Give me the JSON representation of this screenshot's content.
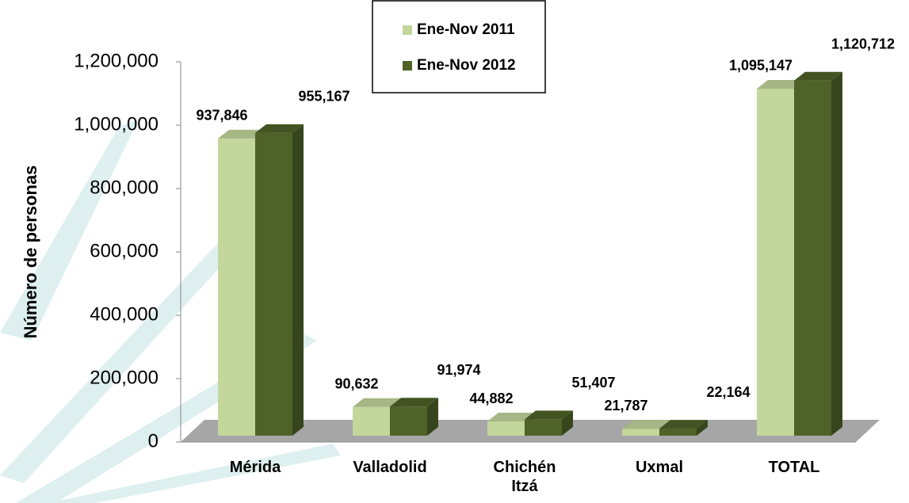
{
  "chart_data": {
    "type": "bar3d",
    "y_axis_label": "Número de personas",
    "categories": [
      "Mérida",
      "Valladolid",
      "Chichén Itzá",
      "Uxmal",
      "TOTAL"
    ],
    "series": [
      {
        "name": "Ene-Nov 2011",
        "color": "#c3d69b",
        "values": [
          937846,
          90632,
          44882,
          21787,
          1095147
        ],
        "value_labels": [
          "937,846",
          "90,632",
          "44,882",
          "21,787",
          "1,095,147"
        ]
      },
      {
        "name": "Ene-Nov 2012",
        "color": "#4f6228",
        "values": [
          955167,
          91974,
          51407,
          22164,
          1120712
        ],
        "value_labels": [
          "955,167",
          "91,974",
          "51,407",
          "22,164",
          "1,120,712"
        ]
      }
    ],
    "ylim": [
      0,
      1200000
    ],
    "yticks": [
      0,
      {
        "value": 200000,
        "label": "200,000"
      },
      {
        "value": 400000,
        "label": "400,000"
      },
      {
        "value": 600000,
        "label": "600,000"
      },
      {
        "value": 800000,
        "label": "800,000"
      },
      {
        "value": 1000000,
        "label": "1,000,000"
      },
      {
        "value": 1200000,
        "label": "1,200,000"
      }
    ],
    "legend": "top"
  }
}
